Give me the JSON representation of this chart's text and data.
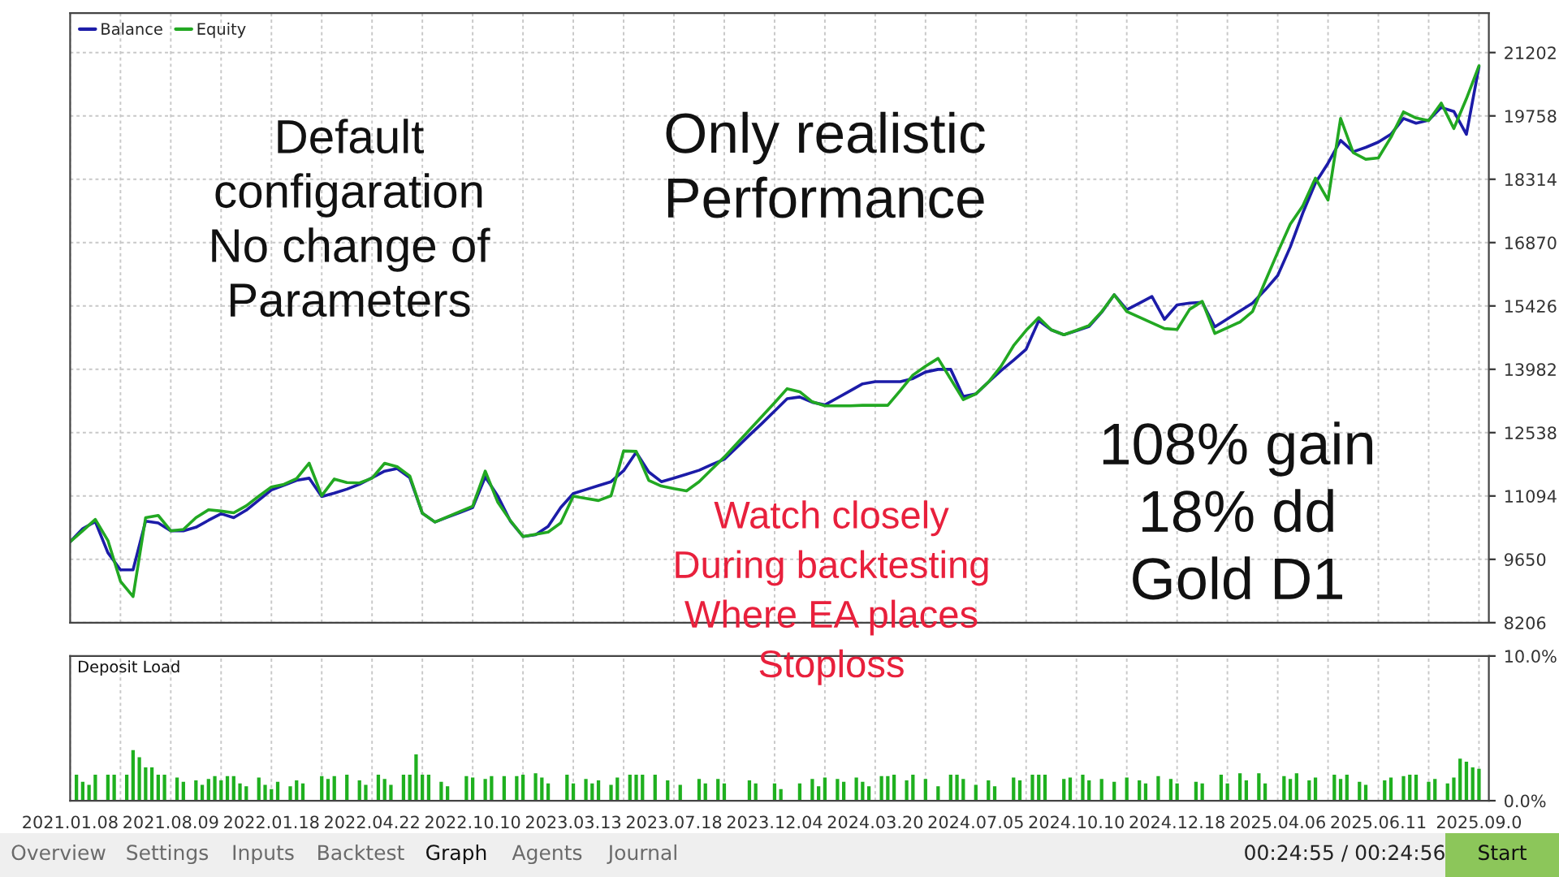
{
  "chart_data": [
    {
      "type": "line",
      "ylim": [
        8206,
        22100
      ],
      "categories": [
        "2021.01.08",
        null,
        null,
        null,
        null,
        null,
        null,
        null,
        "2021.08.09",
        null,
        null,
        null,
        null,
        null,
        null,
        null,
        "2022.01.18",
        null,
        null,
        null,
        null,
        null,
        null,
        null,
        "2022.04.22",
        null,
        null,
        null,
        null,
        null,
        null,
        null,
        "2022.10.10",
        null,
        null,
        null,
        null,
        null,
        null,
        null,
        "2023.03.13",
        null,
        null,
        null,
        null,
        null,
        null,
        null,
        "2023.07.18",
        null,
        null,
        null,
        null,
        null,
        null,
        null,
        "2023.12.04",
        null,
        null,
        null,
        null,
        null,
        null,
        null,
        "2024.03.20",
        null,
        null,
        null,
        null,
        null,
        null,
        null,
        "2024.07.05",
        null,
        null,
        null,
        null,
        null,
        null,
        null,
        "2024.10.10",
        null,
        null,
        null,
        null,
        null,
        null,
        null,
        "2024.12.18",
        null,
        null,
        null,
        null,
        null,
        null,
        null,
        "2025.04.06",
        null,
        null,
        null,
        null,
        null,
        null,
        null,
        "2025.06.11",
        null,
        null,
        null,
        null,
        null,
        null,
        null,
        "2025.09.0"
      ],
      "yticks": [
        8206,
        9650,
        11094,
        12538,
        13982,
        15426,
        16870,
        18314,
        19758,
        21202
      ],
      "tick_labels": "y",
      "grid": true,
      "legend": "top left",
      "marker": "none",
      "line_style": "solid",
      "series": [
        {
          "name": "Balance",
          "color": "#1c1ca8",
          "values": [
            10050,
            10350,
            10510,
            9800,
            9410,
            9410,
            10520,
            10480,
            10300,
            10300,
            10380,
            10540,
            10690,
            10600,
            10770,
            11000,
            11230,
            11340,
            11450,
            11500,
            11080,
            11160,
            11250,
            11360,
            11510,
            11660,
            11720,
            11510,
            10700,
            10500,
            10610,
            10720,
            10830,
            11530,
            11090,
            10520,
            10170,
            10210,
            10400,
            10830,
            11150,
            11240,
            11330,
            11420,
            11670,
            12090,
            11640,
            11420,
            11500,
            11590,
            11680,
            11810,
            11930,
            12200,
            12480,
            12750,
            13030,
            13310,
            13350,
            13230,
            13170,
            13330,
            13490,
            13650,
            13700,
            13700,
            13700,
            13770,
            13920,
            13980,
            13980,
            13360,
            13420,
            13690,
            13950,
            14190,
            14440,
            15090,
            14880,
            14770,
            14860,
            14960,
            15280,
            15680,
            15340,
            15490,
            15640,
            15120,
            15450,
            15490,
            15510,
            14950,
            15130,
            15310,
            15490,
            15790,
            16120,
            16770,
            17550,
            18230,
            18680,
            19200,
            18940,
            19040,
            19160,
            19340,
            19700,
            19590,
            19660,
            19950,
            19860,
            19340,
            20880
          ]
        },
        {
          "name": "Equity",
          "color": "#22a822",
          "values": [
            10050,
            10300,
            10560,
            10080,
            9150,
            8800,
            10600,
            10650,
            10300,
            10330,
            10600,
            10780,
            10750,
            10710,
            10870,
            11090,
            11300,
            11360,
            11490,
            11840,
            11100,
            11480,
            11400,
            11390,
            11500,
            11840,
            11760,
            11550,
            10700,
            10500,
            10620,
            10740,
            10860,
            11660,
            10950,
            10530,
            10170,
            10220,
            10270,
            10480,
            11090,
            11040,
            10990,
            11100,
            12120,
            12110,
            11450,
            11320,
            11260,
            11210,
            11420,
            11700,
            11980,
            12290,
            12600,
            12910,
            13220,
            13540,
            13470,
            13240,
            13150,
            13150,
            13150,
            13160,
            13160,
            13160,
            13500,
            13850,
            14050,
            14230,
            13760,
            13290,
            13420,
            13690,
            14050,
            14520,
            14870,
            15160,
            14880,
            14770,
            14870,
            14980,
            15290,
            15680,
            15300,
            15170,
            15040,
            14910,
            14890,
            15350,
            15530,
            14800,
            14930,
            15060,
            15300,
            15980,
            16650,
            17290,
            17710,
            18340,
            17840,
            19700,
            18920,
            18770,
            18800,
            19270,
            19850,
            19710,
            19650,
            20050,
            19470,
            20150,
            20900
          ]
        }
      ],
      "annotations": [
        "Default\nconfigaration\nNo change of\nParameters",
        "Only realistic\nPerformance",
        "Watch closely\nDuring backtesting\nWhere EA places\nStoploss",
        "108% gain\n18% dd\nGold D1"
      ]
    },
    {
      "type": "bar",
      "title": "Deposit Load",
      "color": "#1fb01f",
      "ylim": [
        0,
        10
      ],
      "categories": [
        "2021.01.08",
        null,
        null,
        null,
        null,
        null,
        null,
        null,
        null,
        null,
        null,
        null,
        null,
        null,
        null,
        null,
        "2021.08.09",
        null,
        null,
        null,
        null,
        null,
        null,
        null,
        null,
        null,
        null,
        null,
        null,
        null,
        null,
        null,
        "2022.01.18",
        null,
        null,
        null,
        null,
        null,
        null,
        null,
        null,
        null,
        null,
        null,
        null,
        null,
        null,
        null,
        "2022.04.22",
        null,
        null,
        null,
        null,
        null,
        null,
        null,
        null,
        null,
        null,
        null,
        null,
        null,
        null,
        null,
        "2022.10.10",
        null,
        null,
        null,
        null,
        null,
        null,
        null,
        null,
        null,
        null,
        null,
        null,
        null,
        null,
        null,
        "2023.03.13",
        null,
        null,
        null,
        null,
        null,
        null,
        null,
        null,
        null,
        null,
        null,
        null,
        null,
        null,
        null,
        "2023.07.18",
        null,
        null,
        null,
        null,
        null,
        null,
        null,
        null,
        null,
        null,
        null,
        null,
        null,
        null,
        null,
        "2023.12.04",
        null,
        null,
        null,
        null,
        null,
        null,
        null,
        null,
        null,
        null,
        null,
        null,
        null,
        null,
        null,
        "2024.03.20",
        null,
        null,
        null,
        null,
        null,
        null,
        null,
        null,
        null,
        null,
        null,
        null,
        null,
        null,
        null,
        "2024.07.05",
        null,
        null,
        null,
        null,
        null,
        null,
        null,
        null,
        null,
        null,
        null,
        null,
        null,
        null,
        null,
        "2024.10.10",
        null,
        null,
        null,
        null,
        null,
        null,
        null,
        null,
        null,
        null,
        null,
        null,
        null,
        null,
        null,
        "2024.12.18",
        null,
        null,
        null,
        null,
        null,
        null,
        null,
        null,
        null,
        null,
        null,
        null,
        null,
        null,
        null,
        "2025.04.06",
        null,
        null,
        null,
        null,
        null,
        null,
        null,
        null,
        null,
        null,
        null,
        null,
        null,
        null,
        null,
        "2025.06.11",
        null,
        null,
        null,
        null,
        null,
        null,
        null,
        null,
        null,
        null,
        null,
        null,
        null,
        null,
        null,
        "2025.09.0"
      ],
      "yticks": [
        {
          "value": 0,
          "label": "0.0%"
        },
        {
          "value": 10,
          "label": "10.0%"
        }
      ],
      "grid": "x",
      "values": [
        null,
        1.8,
        1.3,
        1.1,
        1.8,
        null,
        1.8,
        1.8,
        null,
        1.8,
        3.5,
        3.0,
        2.3,
        2.3,
        1.8,
        1.8,
        null,
        1.6,
        1.3,
        null,
        1.4,
        1.1,
        1.5,
        1.7,
        1.4,
        1.7,
        1.7,
        1.2,
        1.0,
        null,
        1.6,
        1.1,
        0.8,
        1.3,
        null,
        1.0,
        1.4,
        1.2,
        null,
        null,
        1.7,
        1.5,
        1.7,
        null,
        1.8,
        null,
        1.4,
        1.1,
        null,
        1.8,
        1.5,
        1.1,
        null,
        1.8,
        1.8,
        3.2,
        1.8,
        1.8,
        null,
        1.3,
        1.0,
        null,
        null,
        1.7,
        1.6,
        null,
        1.5,
        1.7,
        null,
        1.7,
        null,
        1.7,
        1.8,
        null,
        1.9,
        1.6,
        1.2,
        null,
        null,
        1.8,
        1.2,
        null,
        1.5,
        1.2,
        1.4,
        null,
        1.1,
        1.6,
        null,
        1.8,
        1.8,
        1.8,
        null,
        1.8,
        null,
        1.4,
        null,
        1.1,
        null,
        null,
        1.5,
        1.2,
        null,
        1.5,
        1.2,
        null,
        null,
        null,
        1.4,
        1.2,
        null,
        null,
        1.2,
        0.8,
        null,
        null,
        1.2,
        null,
        1.5,
        1.0,
        1.6,
        null,
        1.5,
        1.3,
        null,
        1.6,
        1.3,
        1.0,
        null,
        1.7,
        1.7,
        1.8,
        null,
        1.4,
        1.8,
        null,
        1.5,
        null,
        1.0,
        null,
        1.8,
        1.8,
        1.5,
        null,
        1.1,
        null,
        1.4,
        1.0,
        null,
        null,
        1.6,
        1.4,
        null,
        1.8,
        1.8,
        1.8,
        null,
        null,
        1.5,
        1.6,
        null,
        1.8,
        1.4,
        null,
        1.5,
        null,
        1.3,
        null,
        1.6,
        null,
        1.4,
        1.2,
        null,
        1.7,
        null,
        1.5,
        1.2,
        null,
        null,
        1.3,
        1.2,
        null,
        null,
        1.8,
        1.2,
        null,
        1.9,
        1.4,
        null,
        1.9,
        1.2,
        null,
        null,
        1.7,
        1.5,
        1.9,
        null,
        1.4,
        1.6,
        null,
        null,
        1.8,
        1.5,
        1.8,
        null,
        1.3,
        1.1,
        null,
        null,
        1.4,
        1.6,
        null,
        1.7,
        1.8,
        1.8,
        null,
        1.3,
        1.5,
        null,
        1.2,
        1.6,
        2.9,
        2.7,
        2.3,
        2.2
      ],
      "annotations": [
        "Overview",
        "Settings",
        "Inputs",
        "Backtest",
        "Graph",
        "Agents",
        "Journal",
        "00:24:55 / 00:24:56",
        "Start"
      ]
    }
  ]
}
